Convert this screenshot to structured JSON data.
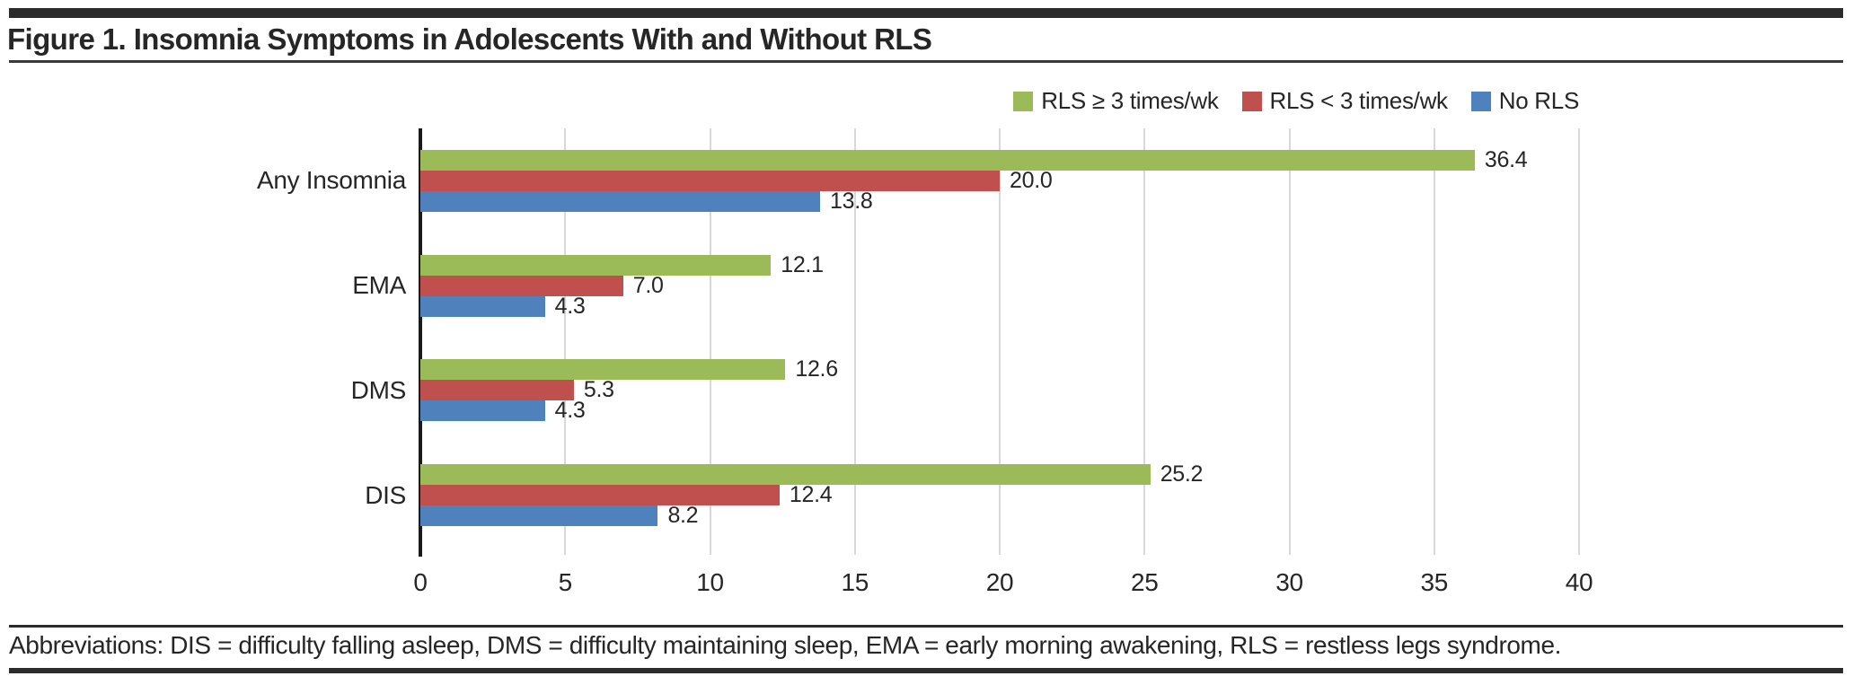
{
  "figure": {
    "title": "Figure 1. Insomnia Symptoms in Adolescents With and Without RLS",
    "footnote": "Abbreviations: DIS = difficulty falling asleep, DMS = difficulty maintaining sleep, EMA = early morning awakening, RLS = restless legs syndrome."
  },
  "chart_data": {
    "type": "bar",
    "orientation": "horizontal",
    "title": "Figure 1. Insomnia Symptoms in Adolescents With and Without RLS",
    "categories": [
      "Any Insomnia",
      "EMA",
      "DMS",
      "DIS"
    ],
    "series": [
      {
        "name": "RLS ≥ 3 times/wk",
        "color": "#9bbb59",
        "values": [
          36.4,
          12.1,
          12.6,
          25.2
        ],
        "labels": [
          "36.4",
          "12.1",
          "12.6",
          "25.2"
        ]
      },
      {
        "name": "RLS < 3 times/wk",
        "color": "#c0504d",
        "values": [
          20.0,
          7.0,
          5.3,
          12.4
        ],
        "labels": [
          "20.0",
          "7.0",
          "5.3",
          "12.4"
        ]
      },
      {
        "name": "No RLS",
        "color": "#4f81bd",
        "values": [
          13.8,
          4.3,
          4.3,
          8.2
        ],
        "labels": [
          "13.8",
          "4.3",
          "4.3",
          "8.2"
        ]
      }
    ],
    "xlim": [
      0,
      40
    ],
    "x_ticks": [
      "0",
      "5",
      "10",
      "15",
      "20",
      "25",
      "30",
      "35",
      "40"
    ],
    "grid": true,
    "legend_position": "top-right",
    "value_labels_shown": true
  },
  "colors": {
    "bar_green": "#9bbb59",
    "bar_red": "#c0504d",
    "bar_blue": "#4f81bd",
    "gridline": "#d8d8d8",
    "axis_line": "#1a1a1a",
    "text": "#262626",
    "rule": "#2b2b2b"
  }
}
